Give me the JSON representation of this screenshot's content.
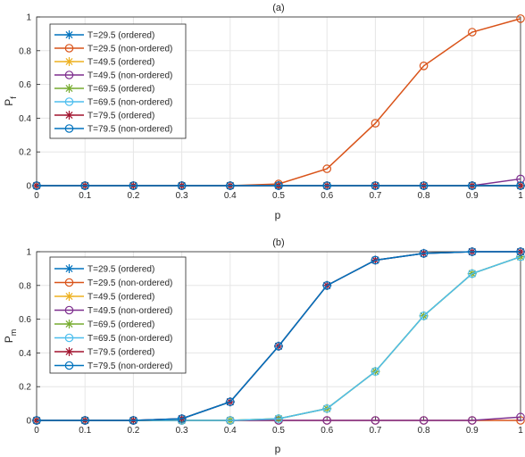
{
  "chart_data": [
    {
      "type": "line",
      "title": "(a)",
      "xlabel": "p",
      "ylabel": "P",
      "ylabel_sub": "f",
      "xlim": [
        0,
        1
      ],
      "ylim": [
        0,
        1
      ],
      "xticks": [
        "0",
        "0.1",
        "0.2",
        "0.3",
        "0.4",
        "0.5",
        "0.6",
        "0.7",
        "0.8",
        "0.9",
        "1"
      ],
      "yticks": [
        "0",
        "0.2",
        "0.4",
        "0.6",
        "0.8",
        "1"
      ],
      "grid": true,
      "legend_position": "top-left",
      "x": [
        0,
        0.1,
        0.2,
        0.3,
        0.4,
        0.5,
        0.6,
        0.7,
        0.8,
        0.9,
        1.0
      ],
      "series": [
        {
          "name": "T=29.5 (ordered)",
          "color": "#0072BD",
          "marker": "asterisk",
          "values": [
            0,
            0,
            0,
            0,
            0,
            0,
            0,
            0,
            0,
            0,
            0
          ]
        },
        {
          "name": "T=29.5 (non-ordered)",
          "color": "#D95319",
          "marker": "circle",
          "values": [
            0,
            0,
            0,
            0,
            0,
            0.01,
            0.1,
            0.37,
            0.71,
            0.91,
            0.99
          ]
        },
        {
          "name": "T=49.5 (ordered)",
          "color": "#EDB120",
          "marker": "asterisk",
          "values": [
            0,
            0,
            0,
            0,
            0,
            0,
            0,
            0,
            0,
            0,
            0
          ]
        },
        {
          "name": "T=49.5 (non-ordered)",
          "color": "#7E2F8E",
          "marker": "circle",
          "values": [
            0,
            0,
            0,
            0,
            0,
            0,
            0,
            0,
            0,
            0,
            0.04
          ]
        },
        {
          "name": "T=69.5 (ordered)",
          "color": "#77AC30",
          "marker": "asterisk",
          "values": [
            0,
            0,
            0,
            0,
            0,
            0,
            0,
            0,
            0,
            0,
            0
          ]
        },
        {
          "name": "T=69.5 (non-ordered)",
          "color": "#4DBEEE",
          "marker": "circle",
          "values": [
            0,
            0,
            0,
            0,
            0,
            0,
            0,
            0,
            0,
            0,
            0
          ]
        },
        {
          "name": "T=79.5 (ordered)",
          "color": "#A2142F",
          "marker": "asterisk",
          "values": [
            0,
            0,
            0,
            0,
            0,
            0,
            0,
            0,
            0,
            0,
            0
          ]
        },
        {
          "name": "T=79.5 (non-ordered)",
          "color": "#0072BD",
          "marker": "circle",
          "values": [
            0,
            0,
            0,
            0,
            0,
            0,
            0,
            0,
            0,
            0,
            0
          ]
        }
      ]
    },
    {
      "type": "line",
      "title": "(b)",
      "xlabel": "p",
      "ylabel": "P",
      "ylabel_sub": "m",
      "xlim": [
        0,
        1
      ],
      "ylim": [
        0,
        1
      ],
      "xticks": [
        "0",
        "0.1",
        "0.2",
        "0.3",
        "0.4",
        "0.5",
        "0.6",
        "0.7",
        "0.8",
        "0.9",
        "1"
      ],
      "yticks": [
        "0",
        "0.2",
        "0.4",
        "0.6",
        "0.8",
        "1"
      ],
      "grid": true,
      "legend_position": "top-left",
      "x": [
        0,
        0.1,
        0.2,
        0.3,
        0.4,
        0.5,
        0.6,
        0.7,
        0.8,
        0.9,
        1.0
      ],
      "series": [
        {
          "name": "T=29.5 (ordered)",
          "color": "#0072BD",
          "marker": "asterisk",
          "values": [
            0,
            0,
            0,
            0.01,
            0.11,
            0.44,
            0.8,
            0.95,
            0.99,
            1.0,
            1.0
          ]
        },
        {
          "name": "T=29.5 (non-ordered)",
          "color": "#D95319",
          "marker": "circle",
          "values": [
            0,
            0,
            0,
            0,
            0,
            0,
            0,
            0,
            0,
            0,
            0
          ]
        },
        {
          "name": "T=49.5 (ordered)",
          "color": "#EDB120",
          "marker": "asterisk",
          "values": [
            0,
            0,
            0,
            0,
            0,
            0.01,
            0.07,
            0.29,
            0.62,
            0.87,
            0.97
          ]
        },
        {
          "name": "T=49.5 (non-ordered)",
          "color": "#7E2F8E",
          "marker": "circle",
          "values": [
            0,
            0,
            0,
            0,
            0,
            0,
            0,
            0,
            0,
            0,
            0.02
          ]
        },
        {
          "name": "T=69.5 (ordered)",
          "color": "#77AC30",
          "marker": "asterisk",
          "values": [
            0,
            0,
            0,
            0,
            0,
            0.01,
            0.07,
            0.29,
            0.62,
            0.87,
            0.97
          ]
        },
        {
          "name": "T=69.5 (non-ordered)",
          "color": "#4DBEEE",
          "marker": "circle",
          "values": [
            0,
            0,
            0,
            0,
            0,
            0.01,
            0.07,
            0.29,
            0.62,
            0.87,
            0.97
          ]
        },
        {
          "name": "T=79.5 (ordered)",
          "color": "#A2142F",
          "marker": "asterisk",
          "values": [
            0,
            0,
            0,
            0.01,
            0.11,
            0.44,
            0.8,
            0.95,
            0.99,
            1.0,
            1.0
          ]
        },
        {
          "name": "T=79.5 (non-ordered)",
          "color": "#0072BD",
          "marker": "circle",
          "values": [
            0,
            0,
            0,
            0.01,
            0.11,
            0.44,
            0.8,
            0.95,
            0.99,
            1.0,
            1.0
          ]
        }
      ]
    }
  ]
}
